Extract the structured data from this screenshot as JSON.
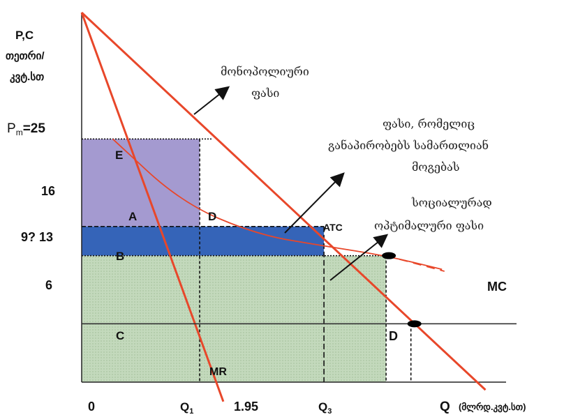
{
  "chart_data": {
    "type": "line",
    "axis_title_y_line1": "P,C",
    "axis_title_y_line2": "თეთრი/",
    "axis_title_y_line3": "კვტ.სთ",
    "axis_title_x": "Q",
    "axis_title_x_unit": "(მლრდ.კვტ.სთ)",
    "y_tick_labels": {
      "pm_prefix": "P",
      "pm_subscript": "m",
      "pm_value": "=25",
      "p16": "16",
      "p9_13": "9? 13",
      "p6": "6"
    },
    "x_tick_labels": {
      "zero": "0",
      "q1": "Q",
      "q1_sub": "1",
      "q2": "1.95",
      "q3": "Q",
      "q3_sub": "3"
    },
    "price_levels": {
      "pm": 25,
      "p16": 16,
      "p13": 13,
      "mc": 6
    },
    "quantities": {
      "q1": 0.95,
      "q2": 1.95,
      "q3": 2.65,
      "q_atc": 2.45
    },
    "ylim": [
      0,
      38
    ],
    "xlim": [
      0,
      3.5
    ],
    "series": [
      {
        "name": "D",
        "color": "#e8472a",
        "points": [
          [
            0,
            38
          ],
          [
            2.68,
            6
          ],
          [
            3.25,
            -0.8
          ]
        ]
      },
      {
        "name": "MR",
        "color": "#e8472a",
        "points": [
          [
            0,
            38
          ],
          [
            1.14,
            -2
          ]
        ]
      },
      {
        "name": "ATC",
        "color": "#e8472a",
        "points": [
          [
            0.25,
            25
          ],
          [
            0.8,
            18.5
          ],
          [
            1.4,
            15.2
          ],
          [
            1.95,
            14
          ],
          [
            2.45,
            13
          ],
          [
            2.9,
            11.6
          ]
        ]
      },
      {
        "name": "MC",
        "color": "#333333",
        "points": [
          [
            0,
            6
          ],
          [
            3.5,
            6
          ]
        ]
      }
    ],
    "regions": [
      {
        "label": "E",
        "color": "#a49ad0",
        "x": [
          0,
          0.95
        ],
        "y": [
          16,
          25
        ]
      },
      {
        "label": "A",
        "color": "#3564b8",
        "x": [
          0,
          0.95
        ],
        "y": [
          13,
          16
        ]
      },
      {
        "label": "D",
        "color": "#3564b8",
        "x": [
          0.95,
          1.95
        ],
        "y": [
          13,
          16
        ]
      },
      {
        "label": "B",
        "color": "#c3d9bc",
        "x": [
          0,
          2.45
        ],
        "y": [
          6,
          13
        ]
      },
      {
        "label": "C",
        "color": "#c3d9bc",
        "x": [
          0,
          2.45
        ],
        "y": [
          0,
          6
        ]
      }
    ],
    "curve_labels": {
      "mc": "MC",
      "d": "D",
      "mr": "MR",
      "atc": "ATC"
    },
    "annotations": {
      "monopoly_line1": "მონოპოლიური",
      "monopoly_line2": "ფასი",
      "fair_line1": "ფასი, რომელიც",
      "fair_line2": "განაპირობებს სამართლიან",
      "fair_line3": "მოგებას",
      "social_line1": "სოციალურად",
      "social_line2": "ოპტიმალური ფასი"
    }
  }
}
